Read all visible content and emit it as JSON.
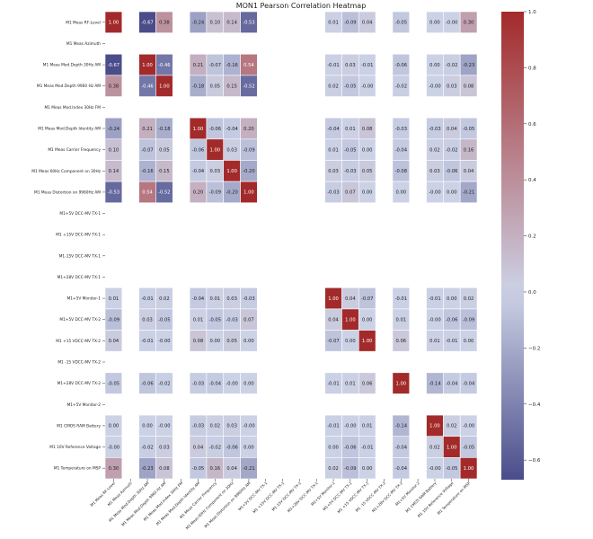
{
  "chart_data": {
    "type": "heatmap",
    "title": "MON1 Pearson Correlation Heatmap",
    "labels": [
      "M1 Meas RF-Level",
      "M1 Meas Azimuth",
      "M1 Meas Mod.Depth 30Hz AM",
      "M1 Meas Mod.Depth 9960 Hz AM",
      "M1 Meas Mod.Index 30Hz FM",
      "M1 Meas Mod.Depth Identity AM",
      "M1 Meas Carrier Frequency",
      "M1 Meas 60Hz Component on 30Hz",
      "M1 Meas Distortion on 9960Hz AM",
      "M1+5V DCC-MV TX-1",
      "M1 +15V DCC-MV TX-1",
      "M1-15V DCC-MV TX-1",
      "M1+28V DCC-MV TX-1",
      "M1+5V Monitor-1",
      "M1+5V DCC-MV TX-2",
      "M1 +15 VDCC-MV TX-2",
      "M1 -15 VDCC-MV TX-2",
      "M1+28V DCC-MV TX-2",
      "M1+5V Monitor-2",
      "M1 CMOS RAM Battery",
      "M1 10V Reference Voltage",
      "M1 Temperature on MSP"
    ],
    "matrix": [
      [
        1.0,
        null,
        -0.67,
        0.38,
        null,
        -0.24,
        0.1,
        0.14,
        -0.53,
        null,
        null,
        null,
        null,
        0.01,
        -0.09,
        0.04,
        null,
        -0.05,
        null,
        0.0,
        -0.0,
        0.3
      ],
      [
        null,
        null,
        null,
        null,
        null,
        null,
        null,
        null,
        null,
        null,
        null,
        null,
        null,
        null,
        null,
        null,
        null,
        null,
        null,
        null,
        null,
        null
      ],
      [
        -0.67,
        null,
        1.0,
        -0.46,
        null,
        0.21,
        -0.07,
        -0.16,
        0.54,
        null,
        null,
        null,
        null,
        -0.01,
        0.03,
        -0.01,
        null,
        -0.06,
        null,
        0.0,
        -0.02,
        -0.23
      ],
      [
        0.38,
        null,
        -0.46,
        1.0,
        null,
        -0.18,
        0.05,
        0.15,
        -0.52,
        null,
        null,
        null,
        null,
        0.02,
        -0.05,
        -0.0,
        null,
        -0.02,
        null,
        -0.0,
        0.03,
        0.08
      ],
      [
        null,
        null,
        null,
        null,
        null,
        null,
        null,
        null,
        null,
        null,
        null,
        null,
        null,
        null,
        null,
        null,
        null,
        null,
        null,
        null,
        null,
        null
      ],
      [
        -0.24,
        null,
        0.21,
        -0.18,
        null,
        1.0,
        -0.06,
        -0.04,
        0.2,
        null,
        null,
        null,
        null,
        -0.04,
        0.01,
        0.08,
        null,
        -0.03,
        null,
        -0.03,
        0.04,
        -0.05
      ],
      [
        0.1,
        null,
        -0.07,
        0.05,
        null,
        -0.06,
        1.0,
        0.03,
        -0.09,
        null,
        null,
        null,
        null,
        0.01,
        -0.05,
        0.0,
        null,
        -0.04,
        null,
        0.02,
        -0.02,
        0.16
      ],
      [
        0.14,
        null,
        -0.16,
        0.15,
        null,
        -0.04,
        0.03,
        1.0,
        -0.2,
        null,
        null,
        null,
        null,
        0.03,
        -0.03,
        0.05,
        null,
        -0.08,
        null,
        0.03,
        -0.06,
        0.04
      ],
      [
        -0.53,
        null,
        0.54,
        -0.52,
        null,
        0.2,
        -0.09,
        -0.2,
        1.0,
        null,
        null,
        null,
        null,
        -0.03,
        0.07,
        0.0,
        null,
        0.0,
        null,
        -0.0,
        0.0,
        -0.21
      ],
      [
        null,
        null,
        null,
        null,
        null,
        null,
        null,
        null,
        null,
        null,
        null,
        null,
        null,
        null,
        null,
        null,
        null,
        null,
        null,
        null,
        null,
        null
      ],
      [
        null,
        null,
        null,
        null,
        null,
        null,
        null,
        null,
        null,
        null,
        null,
        null,
        null,
        null,
        null,
        null,
        null,
        null,
        null,
        null,
        null,
        null
      ],
      [
        null,
        null,
        null,
        null,
        null,
        null,
        null,
        null,
        null,
        null,
        null,
        null,
        null,
        null,
        null,
        null,
        null,
        null,
        null,
        null,
        null,
        null
      ],
      [
        null,
        null,
        null,
        null,
        null,
        null,
        null,
        null,
        null,
        null,
        null,
        null,
        null,
        null,
        null,
        null,
        null,
        null,
        null,
        null,
        null,
        null
      ],
      [
        0.01,
        null,
        -0.01,
        0.02,
        null,
        -0.04,
        0.01,
        0.03,
        -0.03,
        null,
        null,
        null,
        null,
        1.0,
        0.04,
        -0.07,
        null,
        -0.01,
        null,
        -0.01,
        0.0,
        0.02
      ],
      [
        -0.09,
        null,
        0.03,
        -0.05,
        null,
        0.01,
        -0.05,
        -0.03,
        0.07,
        null,
        null,
        null,
        null,
        0.04,
        1.0,
        0.0,
        null,
        0.01,
        null,
        -0.0,
        -0.06,
        -0.09
      ],
      [
        0.04,
        null,
        -0.01,
        -0.0,
        null,
        0.08,
        0.0,
        0.05,
        0.0,
        null,
        null,
        null,
        null,
        -0.07,
        0.0,
        1.0,
        null,
        0.06,
        null,
        0.01,
        -0.01,
        0.0
      ],
      [
        null,
        null,
        null,
        null,
        null,
        null,
        null,
        null,
        null,
        null,
        null,
        null,
        null,
        null,
        null,
        null,
        null,
        null,
        null,
        null,
        null,
        null
      ],
      [
        -0.05,
        null,
        -0.06,
        -0.02,
        null,
        -0.03,
        -0.04,
        -0.0,
        0.0,
        null,
        null,
        null,
        null,
        -0.01,
        0.01,
        0.06,
        null,
        1.0,
        null,
        -0.14,
        -0.04,
        -0.04
      ],
      [
        null,
        null,
        null,
        null,
        null,
        null,
        null,
        null,
        null,
        null,
        null,
        null,
        null,
        null,
        null,
        null,
        null,
        null,
        null,
        null,
        null,
        null
      ],
      [
        0.0,
        null,
        0.0,
        -0.0,
        null,
        -0.03,
        0.02,
        0.03,
        -0.0,
        null,
        null,
        null,
        null,
        -0.01,
        -0.0,
        0.01,
        null,
        -0.14,
        null,
        1.0,
        0.02,
        -0.0
      ],
      [
        -0.0,
        null,
        -0.02,
        0.03,
        null,
        0.04,
        -0.02,
        -0.06,
        0.0,
        null,
        null,
        null,
        null,
        0.0,
        -0.06,
        -0.01,
        null,
        -0.04,
        null,
        0.02,
        1.0,
        -0.05
      ],
      [
        0.3,
        null,
        -0.23,
        0.08,
        null,
        -0.05,
        0.16,
        0.04,
        -0.21,
        null,
        null,
        null,
        null,
        0.02,
        -0.09,
        0.0,
        null,
        -0.04,
        null,
        -0.0,
        -0.05,
        1.0
      ]
    ],
    "colorbar": {
      "ticks": [
        1.0,
        0.8,
        0.6,
        0.4,
        0.2,
        0.0,
        -0.2,
        -0.4,
        -0.6
      ],
      "tick_labels": [
        "1.0",
        "0.8",
        "0.6",
        "0.4",
        "0.2",
        "0.0",
        "−0.2",
        "−0.4",
        "−0.6"
      ],
      "range": [
        -0.67,
        1.0
      ]
    },
    "colormap": {
      "low": "#4a4d8a",
      "mid": "#ccd2e6",
      "high": "#a32a2a"
    }
  }
}
